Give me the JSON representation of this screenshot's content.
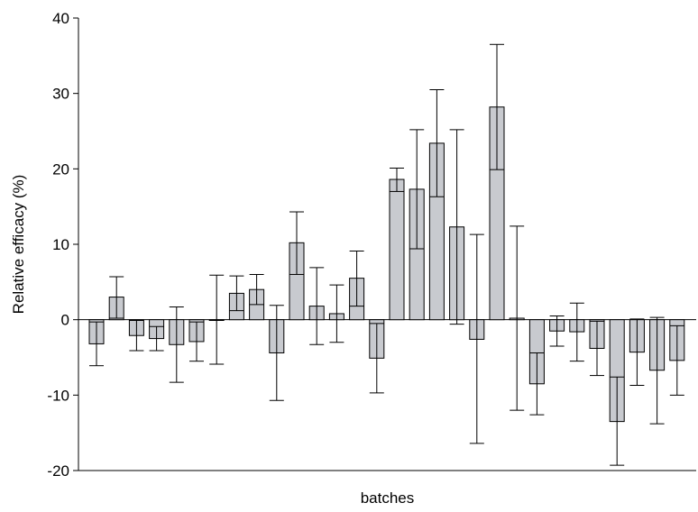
{
  "chart_data": {
    "type": "bar",
    "xlabel": "batches",
    "ylabel": "Relative efficacy (%)",
    "ylim": [
      -20,
      40
    ],
    "yticks": [
      -20,
      -10,
      0,
      10,
      20,
      30,
      40
    ],
    "ytick_labels": [
      "-20",
      "-10",
      "0",
      "10",
      "20",
      "30",
      "40"
    ],
    "grid": false,
    "bar_color": "#c8cacf",
    "series": [
      {
        "values": [
          -3.2,
          3.0,
          -2.1,
          -2.5,
          -3.3,
          -2.9,
          -0.1,
          3.5,
          4.0,
          -4.4,
          10.2,
          1.8,
          0.8,
          5.5,
          -5.1,
          18.6,
          17.3,
          23.4,
          12.3,
          -2.6,
          28.2,
          0.2,
          -8.5,
          -1.5,
          -1.6,
          -3.8,
          -13.5,
          -4.3,
          -6.7,
          -5.4
        ],
        "error_low": [
          -6.1,
          0.2,
          -4.1,
          -4.1,
          -8.3,
          -5.5,
          -5.9,
          1.2,
          2.0,
          -10.7,
          6.0,
          -3.3,
          -3.0,
          1.8,
          -9.7,
          17.0,
          9.4,
          16.3,
          -0.6,
          -16.4,
          19.9,
          -12.0,
          -12.6,
          -3.5,
          -5.5,
          -7.4,
          -19.3,
          -8.7,
          -13.8,
          -10.0
        ],
        "error_high": [
          -0.3,
          5.7,
          -0.1,
          -0.9,
          1.7,
          -0.3,
          5.9,
          5.8,
          6.0,
          1.9,
          14.3,
          6.9,
          4.6,
          9.1,
          -0.5,
          20.1,
          25.2,
          30.5,
          25.2,
          11.3,
          36.5,
          12.4,
          -4.4,
          0.5,
          2.2,
          -0.2,
          -7.6,
          0.1,
          0.3,
          -0.8
        ]
      }
    ]
  }
}
